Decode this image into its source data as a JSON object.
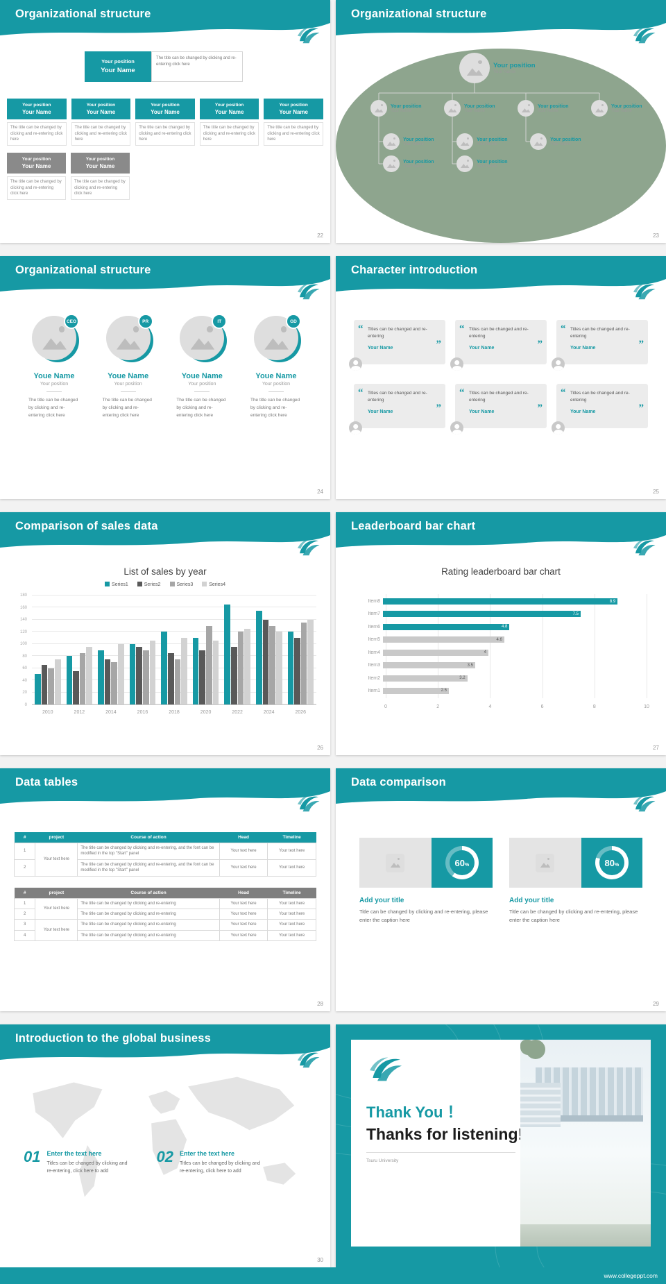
{
  "page": {
    "accent": "#1699a4",
    "footer_url": "www.collegeppt.com"
  },
  "common": {
    "position": "Your position",
    "name": "Your Name"
  },
  "slides": {
    "org1": {
      "title": "Organizational structure",
      "page_num": "22",
      "root_note": "The title can be changed by clicking and re-entering click here",
      "node_caption": "The title can be changed by clicking and re-entering click here"
    },
    "org2": {
      "title": "Organizational structure",
      "page_num": "23"
    },
    "org3": {
      "title": "Organizational structure",
      "page_num": "24",
      "caption": "The title can be changed by clicking and re-entering click here",
      "members": [
        {
          "badge": "CEO",
          "name": "Youe Name",
          "position": "Your position"
        },
        {
          "badge": "PR",
          "name": "Youe Name",
          "position": "Your position"
        },
        {
          "badge": "IT",
          "name": "Youe Name",
          "position": "Your position"
        },
        {
          "badge": "GD",
          "name": "Youe Name",
          "position": "Your position"
        }
      ]
    },
    "chars": {
      "title": "Character introduction",
      "page_num": "25",
      "quote": "Titles can be changed and re-entering",
      "name": "Your Name"
    },
    "sales": {
      "title": "Comparison of sales data",
      "page_num": "26"
    },
    "leader": {
      "title": "Leaderboard bar chart",
      "page_num": "27"
    },
    "tables": {
      "title": "Data tables",
      "page_num": "28",
      "headers": [
        "#",
        "project",
        "Course of action",
        "Head",
        "Timeline"
      ],
      "t1": {
        "project": "Your text here",
        "rows": [
          {
            "num": "1",
            "course": "The title can be changed by clicking and re-entering, and the font can be modified in the top \"Start\" panel",
            "head": "Your text here",
            "timeline": "Your text here"
          },
          {
            "num": "2",
            "course": "The title can be changed by clicking and re-entering, and the font can be modified in the top \"Start\" panel",
            "head": "Your text here",
            "timeline": "Your text here"
          }
        ]
      },
      "t2": {
        "project": "Your text here",
        "course": "The title can be changed by clicking and re-entering",
        "cell": "Your text here",
        "nums": [
          "1",
          "2",
          "3",
          "4"
        ]
      }
    },
    "compare": {
      "title": "Data comparison",
      "page_num": "29",
      "cards": [
        {
          "percent": 60,
          "heading": "Add your title",
          "caption": "Title can be changed by clicking and re-entering, please enter the caption here"
        },
        {
          "percent": 80,
          "heading": "Add your title",
          "caption": "Title can be changed by clicking and re-entering, please enter the caption here"
        }
      ]
    },
    "global": {
      "title": "Introduction to the global business",
      "page_num": "30",
      "items": [
        {
          "num": "01",
          "heading": "Enter the text here",
          "caption": "Titles can be changed by clicking and re-entering, click here to add"
        },
        {
          "num": "02",
          "heading": "Enter the text here",
          "caption": "Titles can be changed by clicking and re-entering, click here to add"
        }
      ]
    },
    "thanks": {
      "title_cn": "Thank You ！",
      "title_en": "Thanks for listening!",
      "subtitle": "Tsuru University"
    }
  },
  "chart_data": [
    {
      "type": "bar",
      "title": "List of sales by year",
      "categories": [
        "2010",
        "2012",
        "2014",
        "2016",
        "2018",
        "2020",
        "2022",
        "2024",
        "2026"
      ],
      "series": [
        {
          "name": "Series1",
          "values": [
            50,
            80,
            90,
            100,
            120,
            110,
            165,
            155,
            120
          ]
        },
        {
          "name": "Series2",
          "values": [
            65,
            55,
            75,
            95,
            85,
            90,
            95,
            140,
            110
          ]
        },
        {
          "name": "Series3",
          "values": [
            60,
            85,
            70,
            90,
            75,
            130,
            120,
            130,
            135
          ]
        },
        {
          "name": "Series4",
          "values": [
            75,
            95,
            100,
            105,
            110,
            105,
            125,
            120,
            140
          ]
        }
      ],
      "colors": [
        "#1699a4",
        "#595959",
        "#a6a6a6",
        "#d2d2d2"
      ],
      "ylim": [
        0,
        180
      ],
      "ytick_step": 20,
      "legend_position": "top",
      "grid": true
    },
    {
      "type": "bar-horizontal",
      "title": "Rating leaderboard bar chart",
      "categories": [
        "Item8",
        "Item7",
        "Item6",
        "Item5",
        "Item4",
        "Item3",
        "Item2",
        "Item1"
      ],
      "values": [
        8.9,
        7.5,
        4.8,
        4.6,
        4,
        3.5,
        3.2,
        2.5
      ],
      "colors": [
        "#1699a4",
        "#1699a4",
        "#1699a4",
        "#c9c9c9",
        "#c9c9c9",
        "#c9c9c9",
        "#c9c9c9",
        "#c9c9c9"
      ],
      "xlim": [
        0,
        10
      ],
      "xtick_step": 2,
      "grid": true
    }
  ]
}
